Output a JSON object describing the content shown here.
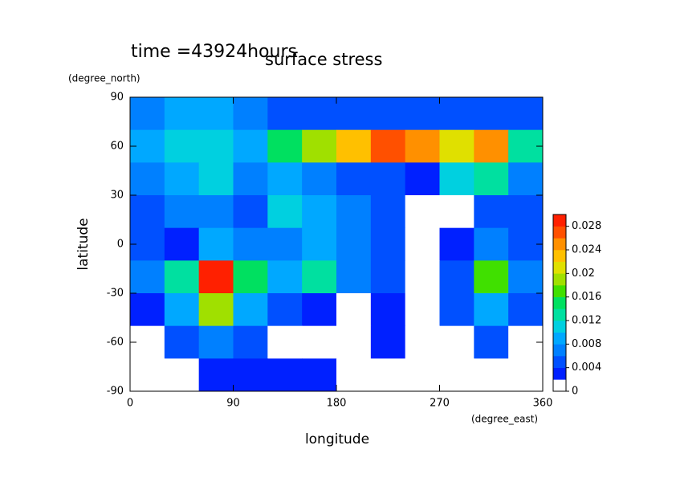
{
  "chart_data": {
    "type": "contour",
    "title": "time =43924hours",
    "subtitle": "surface stress",
    "xlabel": "longitude",
    "xunit": "(degree_east)",
    "ylabel": "latitude",
    "yunit": "(degree_north)",
    "xlim": [
      0,
      360
    ],
    "xticks": [
      0,
      90,
      180,
      270,
      360
    ],
    "ylim": [
      -90,
      90
    ],
    "yticks": [
      -90,
      -60,
      -30,
      0,
      30,
      60,
      90
    ],
    "x": [
      15,
      45,
      75,
      105,
      135,
      165,
      195,
      225,
      255,
      285,
      315,
      345
    ],
    "y": [
      80,
      60,
      40,
      20,
      0,
      -20,
      -40,
      -60,
      -80
    ],
    "z": [
      [
        0.006,
        0.008,
        0.008,
        0.006,
        0.005,
        0.005,
        0.005,
        0.004,
        0.004,
        0.005,
        0.005,
        0.004
      ],
      [
        0.008,
        0.01,
        0.01,
        0.008,
        0.014,
        0.018,
        0.022,
        0.026,
        0.024,
        0.02,
        0.024,
        0.012
      ],
      [
        0.006,
        0.008,
        0.01,
        0.006,
        0.008,
        0.006,
        0.004,
        0.004,
        0.002,
        0.01,
        0.012,
        0.006
      ],
      [
        0.004,
        0.006,
        0.006,
        0.004,
        0.01,
        0.008,
        0.006,
        0.004,
        0.001,
        0.001,
        0.004,
        0.004
      ],
      [
        0.004,
        0.002,
        0.008,
        0.006,
        0.006,
        0.008,
        0.006,
        0.004,
        0.001,
        0.002,
        0.006,
        0.004
      ],
      [
        0.006,
        0.012,
        0.028,
        0.014,
        0.008,
        0.012,
        0.006,
        0.004,
        0.001,
        0.004,
        0.016,
        0.006
      ],
      [
        0.002,
        0.008,
        0.018,
        0.008,
        0.004,
        0.002,
        0.001,
        0.003,
        0.001,
        0.004,
        0.008,
        0.004
      ],
      [
        0.001,
        0.004,
        0.006,
        0.004,
        0.001,
        0.001,
        0.001,
        0.002,
        0.001,
        0.001,
        0.004,
        0.001
      ],
      [
        0.001,
        0.001,
        0.002,
        0.003,
        0.003,
        0.002,
        0.001,
        0.001,
        0.001,
        0.001,
        0.001,
        0.001
      ]
    ],
    "levels": [
      0,
      0.002,
      0.004,
      0.006,
      0.008,
      0.01,
      0.012,
      0.014,
      0.016,
      0.018,
      0.02,
      0.022,
      0.024,
      0.026,
      0.028,
      0.03
    ],
    "colors": [
      "#ffffff",
      "#0020ff",
      "#0050ff",
      "#0080ff",
      "#00a8ff",
      "#00d0e0",
      "#00e0a0",
      "#00e060",
      "#40e000",
      "#a0e000",
      "#e0e000",
      "#ffc000",
      "#ff9000",
      "#ff5000",
      "#ff2000"
    ],
    "clim": [
      0,
      0.03
    ],
    "cticks": [
      0,
      0.004,
      0.008,
      0.012,
      0.016,
      0.02,
      0.024,
      0.028
    ]
  }
}
